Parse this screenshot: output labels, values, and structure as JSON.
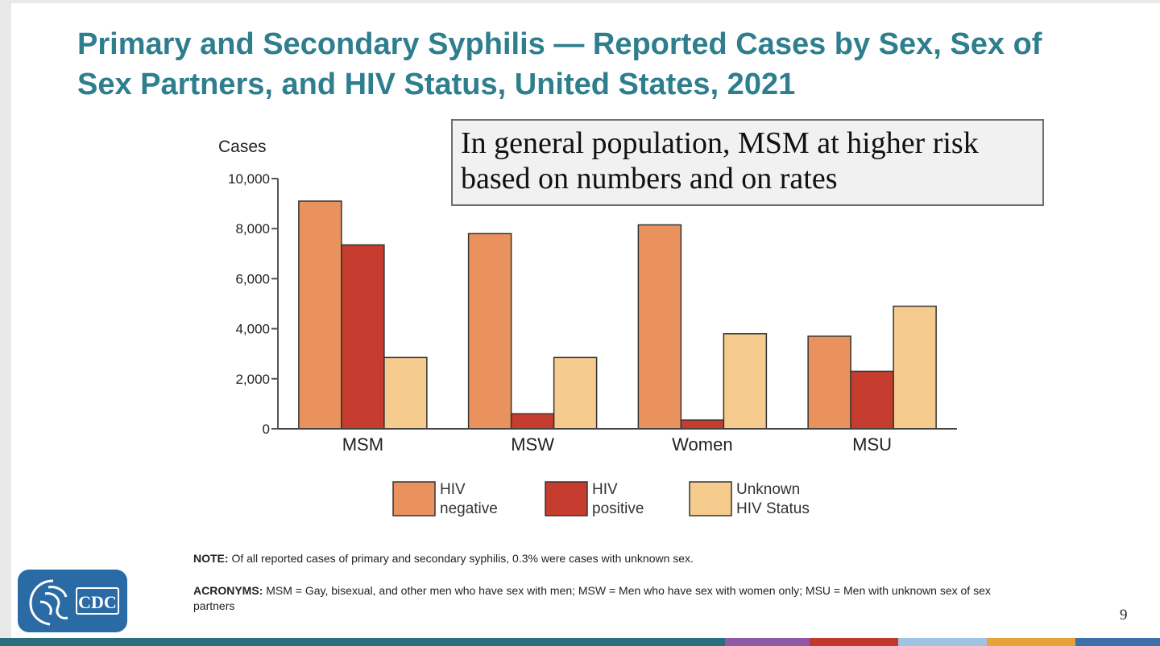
{
  "slide": {
    "title": "Primary and Secondary Syphilis — Reported Cases by Sex, Sex of Sex Partners, and HIV Status, United States, 2021",
    "callout": "In general population, MSM at higher risk based on numbers and on rates",
    "note_label": "NOTE:",
    "note_text": " Of all reported cases of primary and secondary syphilis, 0.3% were cases with unknown sex.",
    "acronyms_label": "ACRONYMS:",
    "acronyms_text": " MSM = Gay, bisexual, and other men who have sex with men; MSW = Men who have sex with women only; MSU = Men with unknown sex of sex partners",
    "logo_text": "CDC",
    "page_number": "9"
  },
  "colors": {
    "title": "#2e7e8e",
    "hiv_negative": "#e9925e",
    "hiv_positive": "#c63c2e",
    "unknown": "#f5cc8e",
    "bottom_bar": [
      "#2b6f7d",
      "#8e5aa8",
      "#c13a2f",
      "#9fc3e3",
      "#e8a23a",
      "#3e6fa8"
    ]
  },
  "chart_data": {
    "type": "bar",
    "ylabel": "Cases",
    "xlabel": "",
    "ylim": [
      0,
      10000
    ],
    "yticks": [
      "0",
      "2,000",
      "4,000",
      "6,000",
      "8,000",
      "10,000"
    ],
    "ytick_values": [
      0,
      2000,
      4000,
      6000,
      8000,
      10000
    ],
    "categories": [
      "MSM",
      "MSW",
      "Women",
      "MSU"
    ],
    "series": [
      {
        "name": "HIV negative",
        "legend_lines": [
          "HIV",
          "negative"
        ],
        "values": [
          9100,
          7800,
          8150,
          3700
        ]
      },
      {
        "name": "HIV positive",
        "legend_lines": [
          "HIV",
          "positive"
        ],
        "values": [
          7350,
          600,
          350,
          2300
        ]
      },
      {
        "name": "Unknown HIV Status",
        "legend_lines": [
          "Unknown",
          "HIV Status"
        ],
        "values": [
          2850,
          2850,
          3800,
          4900
        ]
      }
    ],
    "grid": false,
    "legend": "bottom-center"
  }
}
